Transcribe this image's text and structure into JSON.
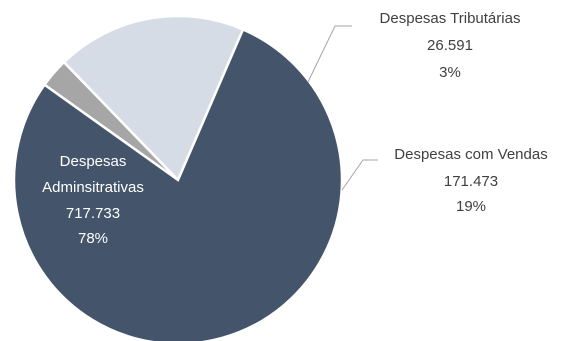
{
  "chart_data": {
    "type": "pie",
    "title": "",
    "slices": [
      {
        "category": "Despesas Tributárias",
        "value_label": "26.591",
        "percent_label": "3%",
        "value": 26591,
        "percent": 3,
        "color": "#a6a6a6"
      },
      {
        "category": "Despesas com Vendas",
        "value_label": "171.473",
        "percent_label": "19%",
        "value": 171473,
        "percent": 19,
        "color": "#d6dce5"
      },
      {
        "category_lines": [
          "Despesas",
          "Adminsitrativas"
        ],
        "value_label": "717.733",
        "percent_label": "78%",
        "value": 717733,
        "percent": 78,
        "color": "#44546a"
      }
    ],
    "legend": "none",
    "data_labels": "category, value, percent"
  }
}
